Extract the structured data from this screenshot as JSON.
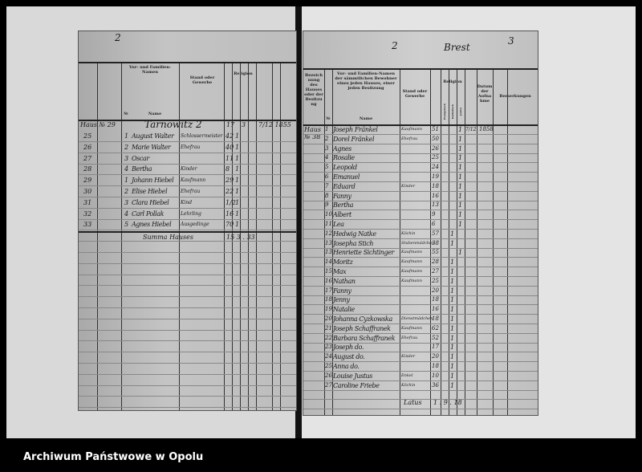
{
  "footer": {
    "archive_name": "Archiwum Państwowe w Opolu"
  },
  "left_page": {
    "page_mark": "2",
    "headers": {
      "col3": "Vor- und Familien-Namen",
      "name": "Name",
      "no": "№",
      "stand": "Stand oder Gewerbe",
      "religion": "Religion"
    },
    "house": "Haus № 29",
    "street": "Tarnowitz 2",
    "top_vals": [
      "17",
      "3",
      "7/12 1855"
    ],
    "rows": [
      {
        "row": "25",
        "no": "1",
        "name": "August Walter",
        "stand": "Schlossermeister",
        "age": "42",
        "rel": "1"
      },
      {
        "row": "26",
        "no": "2",
        "name": "Marie Walter",
        "stand": "Ehefrau",
        "age": "40",
        "rel": "1"
      },
      {
        "row": "27",
        "no": "3",
        "name": "Oscar",
        "stand": "",
        "age": "11",
        "rel": "1"
      },
      {
        "row": "28",
        "no": "4",
        "name": "Bertha",
        "stand": "Kinder",
        "age": "8",
        "rel": "1"
      },
      {
        "row": "29",
        "no": "1",
        "name": "Johann Hiebel",
        "stand": "Kaufmann",
        "age": "29",
        "rel": "1"
      },
      {
        "row": "30",
        "no": "2",
        "name": "Elise Hiebel",
        "stand": "Ehefrau",
        "age": "22",
        "rel": "1"
      },
      {
        "row": "31",
        "no": "3",
        "name": "Clara Hiebel",
        "stand": "Kind",
        "age": "1/2",
        "rel": "1"
      },
      {
        "row": "32",
        "no": "4",
        "name": "Carl Pollak",
        "stand": "Lehrling",
        "age": "16",
        "rel": "1"
      },
      {
        "row": "33",
        "no": "5",
        "name": "Agnes Hiebel",
        "stand": "Ausgedinge",
        "age": "70",
        "rel": "1"
      }
    ],
    "summe": "Summa Hauses",
    "summe_vals": "15 3 . 33"
  },
  "right_page": {
    "page_marks": [
      "2",
      "Brest",
      "3"
    ],
    "headers": {
      "col2": "Bezeichnung des Hauses oder der Besitzung",
      "col3": "Vor- und Familien-Namen der sämmtlichen Bewohner eines jeden Hauses, einer jeden Besitzung",
      "name": "Name",
      "no": "№",
      "stand": "Stand oder Gewerbe",
      "religion": "Religion",
      "evang": "Evangelisch",
      "kath": "Katholisch",
      "juden": "Juden",
      "datum": "Datum der Aufnahme",
      "bemerkungen": "Bemerkungen"
    },
    "house": "Haus № 38",
    "rows": [
      {
        "no": "1",
        "name": "Joseph Fränkel",
        "stand": "Kaufmann",
        "age": "51",
        "rel": "1",
        "date": "7/12",
        "year": "1858"
      },
      {
        "no": "2",
        "name": "Dorel Fränkel",
        "stand": "Ehefrau",
        "age": "50",
        "rel": "1"
      },
      {
        "no": "3",
        "name": "Agnes",
        "stand": "",
        "age": "26",
        "rel": "1"
      },
      {
        "no": "4",
        "name": "Rosalie",
        "stand": "",
        "age": "25",
        "rel": "1"
      },
      {
        "no": "5",
        "name": "Leopold",
        "stand": "",
        "age": "24",
        "rel": "1"
      },
      {
        "no": "6",
        "name": "Emanuel",
        "stand": "",
        "age": "19",
        "rel": "1"
      },
      {
        "no": "7",
        "name": "Eduard",
        "stand": "Kinder",
        "age": "18",
        "rel": "1"
      },
      {
        "no": "8",
        "name": "Fanny",
        "stand": "",
        "age": "16",
        "rel": "1"
      },
      {
        "no": "9",
        "name": "Bertha",
        "stand": "",
        "age": "13",
        "rel": "1"
      },
      {
        "no": "10",
        "name": "Albert",
        "stand": "",
        "age": "9",
        "rel": "1"
      },
      {
        "no": "11",
        "name": "Lea",
        "stand": "",
        "age": "6",
        "rel": "1"
      },
      {
        "no": "12",
        "name": "Hedwig Natke",
        "stand": "Köchin",
        "age": "57",
        "rel": "1"
      },
      {
        "no": "13",
        "name": "Josepha Stich",
        "stand": "Stubenmädchen",
        "age": "38",
        "rel": "1"
      },
      {
        "no": "13",
        "name": "Henriette Sichtinger",
        "stand": "Kaufmann",
        "age": "55",
        "rel": "1"
      },
      {
        "no": "14",
        "name": "Moritz",
        "stand": "Kaufmann",
        "age": "28",
        "rel": "1"
      },
      {
        "no": "15",
        "name": "Max",
        "stand": "Kaufmann",
        "age": "27",
        "rel": "1"
      },
      {
        "no": "16",
        "name": "Nathan",
        "stand": "Kaufmann",
        "age": "25",
        "rel": "1"
      },
      {
        "no": "17",
        "name": "Fanny",
        "stand": "",
        "age": "20",
        "rel": "1"
      },
      {
        "no": "18",
        "name": "Jenny",
        "stand": "",
        "age": "18",
        "rel": "1"
      },
      {
        "no": "19",
        "name": "Natalie",
        "stand": "",
        "age": "16",
        "rel": "1"
      },
      {
        "no": "20",
        "name": "Johanna Cyzkowska",
        "stand": "Dienstmädchen",
        "age": "18",
        "rel": "1"
      },
      {
        "no": "21",
        "name": "Joseph Schaffranek",
        "stand": "Kaufmann",
        "age": "62",
        "rel": "1"
      },
      {
        "no": "22",
        "name": "Barbara Schaffranek",
        "stand": "Ehefrau",
        "age": "52",
        "rel": "1"
      },
      {
        "no": "23",
        "name": "Joseph do.",
        "stand": "",
        "age": "17",
        "rel": "1"
      },
      {
        "no": "24",
        "name": "August do.",
        "stand": "Kinder",
        "age": "20",
        "rel": "1"
      },
      {
        "no": "25",
        "name": "Anna do.",
        "stand": "",
        "age": "18",
        "rel": "1"
      },
      {
        "no": "26",
        "name": "Louise Justus",
        "stand": "Enkel",
        "age": "10",
        "rel": "1"
      },
      {
        "no": "27",
        "name": "Caroline Friebe",
        "stand": "Köchin",
        "age": "36",
        "rel": "1"
      }
    ],
    "summe": "Latus",
    "summe_vals": "1 . 9 . 18"
  }
}
